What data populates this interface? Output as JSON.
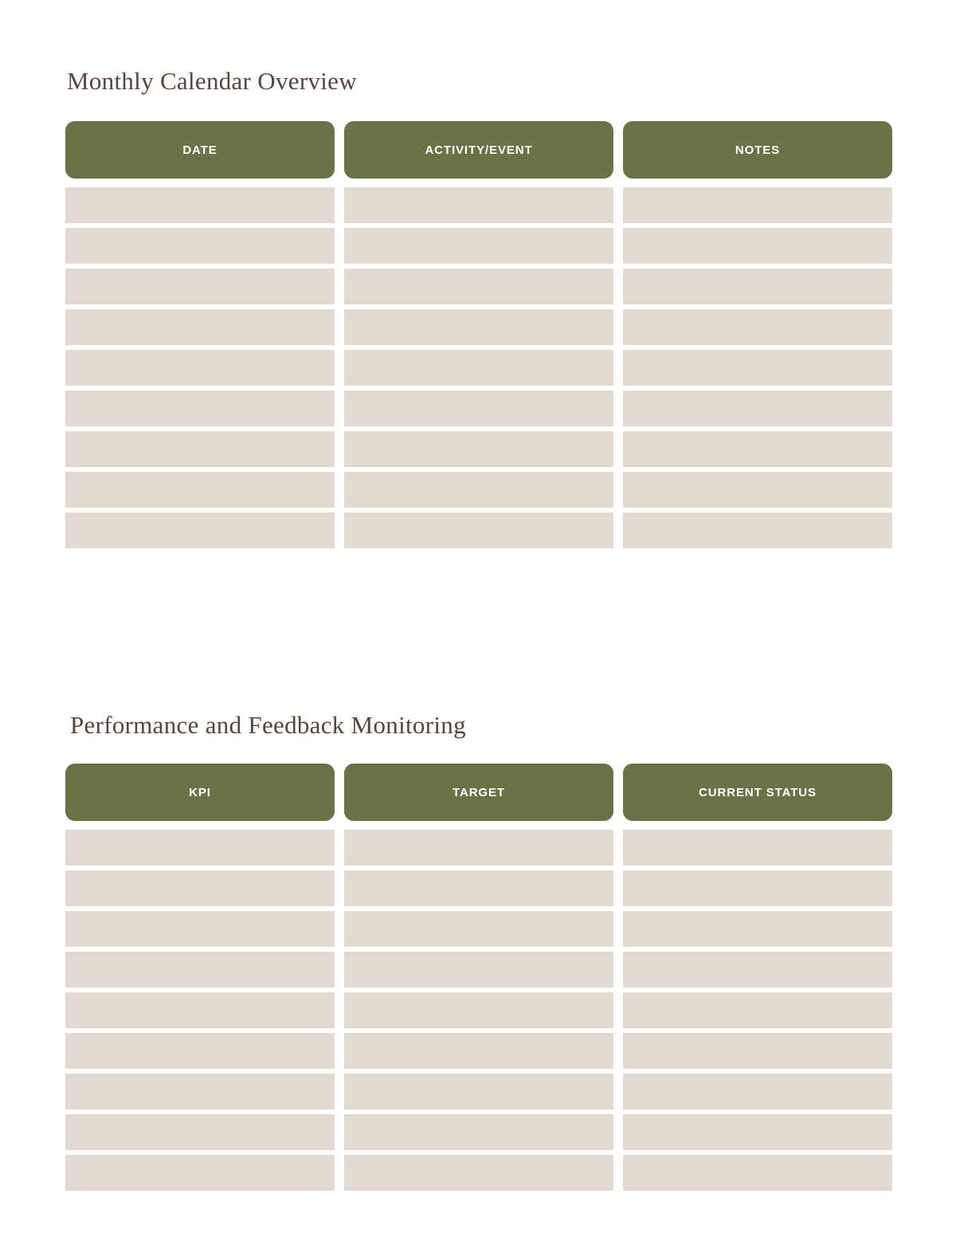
{
  "page": {
    "background": "#ffffff",
    "kind": "planner-template-page"
  },
  "colors": {
    "header_green": "#6b7245",
    "row_beige": "#e2d9d1",
    "title_brown": "#5b423c",
    "header_text": "#ffffff"
  },
  "sections": [
    {
      "title": "Monthly Calendar Overview",
      "columns": [
        "DATE",
        "ACTIVITY/EVENT",
        "NOTES"
      ],
      "row_count": 9
    },
    {
      "title": "Performance and Feedback Monitoring",
      "columns": [
        "KPI",
        "TARGET",
        "CURRENT STATUS"
      ],
      "row_count": 9
    }
  ]
}
